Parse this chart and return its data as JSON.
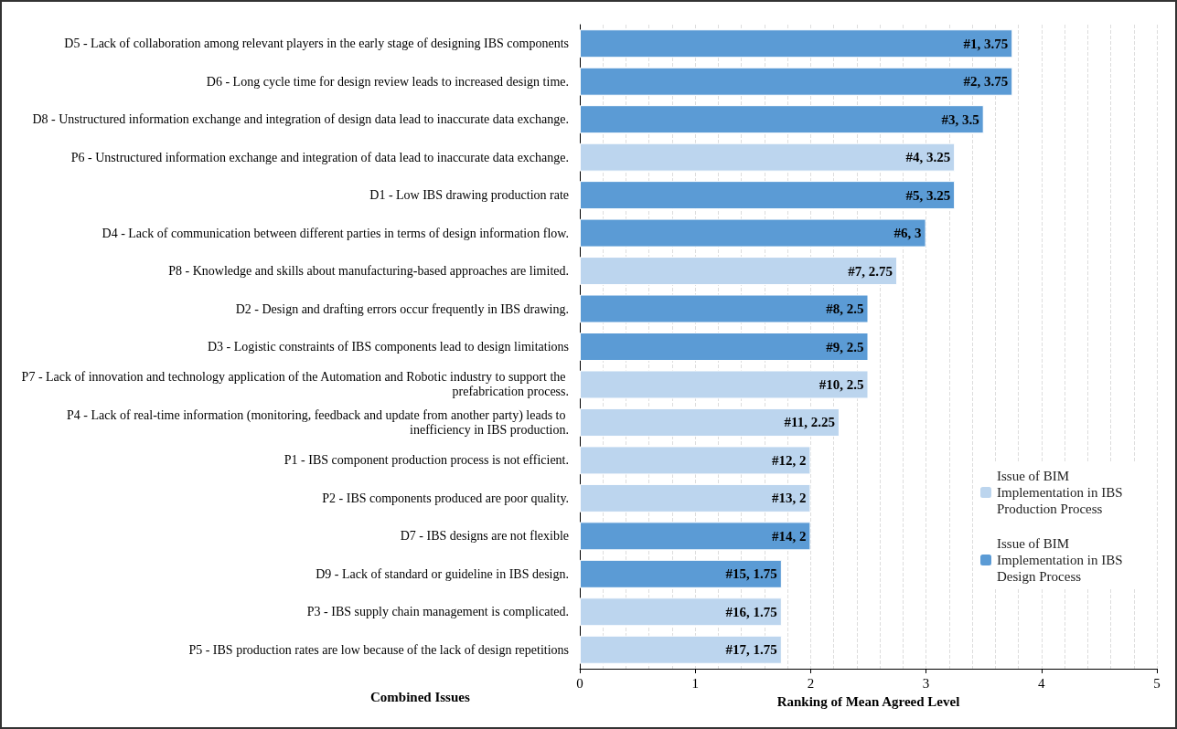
{
  "chart_data": {
    "type": "bar",
    "orientation": "horizontal",
    "xlabel": "Ranking of Mean Agreed Level",
    "ylabel": "Combined Issues",
    "categories": [
      "D5 - Lack of collaboration among relevant players in the early stage of designing IBS components",
      "D6 - Long cycle time for design review leads to increased design time.",
      "D8 - Unstructured information exchange and integration of design data lead to inaccurate data exchange.",
      "P6 - Unstructured information exchange and integration of data lead to inaccurate data exchange.",
      "D1 - Low IBS drawing production rate",
      "D4 - Lack of communication between different parties in terms of design information flow.",
      "P8 - Knowledge and skills about manufacturing-based approaches are limited.",
      "D2 - Design and drafting errors occur frequently in IBS drawing.",
      "D3 - Logistic constraints of IBS components lead to design limitations",
      "P7 - Lack of innovation and technology application of the Automation and Robotic industry to support the prefabrication process.",
      "P4 - Lack of real-time information (monitoring, feedback and update from another party) leads to inefficiency in IBS production.",
      "P1 - IBS component production process is not efficient.",
      "P2 - IBS components produced are poor quality.",
      "D7 - IBS designs are not flexible",
      "D9 - Lack of standard or guideline in IBS design.",
      "P3 - IBS supply chain management is complicated.",
      "P5 - IBS production rates are low because of the lack of design repetitions"
    ],
    "series": [
      {
        "name": "Issue of BIM Implementation in IBS Production Process",
        "color": "#bcd5ee",
        "values": [
          null,
          null,
          null,
          3.25,
          null,
          null,
          2.75,
          null,
          null,
          2.5,
          2.25,
          2,
          2,
          null,
          null,
          1.75,
          1.75
        ],
        "value_labels": [
          null,
          null,
          null,
          "#4, 3.25",
          null,
          null,
          "#7, 2.75",
          null,
          null,
          "#10, 2.5",
          "#11, 2.25",
          "#12, 2",
          "#13, 2",
          null,
          null,
          "#16, 1.75",
          "#17, 1.75"
        ]
      },
      {
        "name": "Issue of BIM Implementation in IBS Design Process",
        "color": "#5b9bd5",
        "values": [
          3.75,
          3.75,
          3.5,
          null,
          3.25,
          3,
          null,
          2.5,
          2.5,
          null,
          null,
          null,
          null,
          2,
          1.75,
          null,
          null
        ],
        "value_labels": [
          "#1, 3.75",
          "#2, 3.75",
          "#3, 3.5",
          null,
          "#5, 3.25",
          "#6, 3",
          null,
          "#8, 2.5",
          "#9, 2.5",
          null,
          null,
          null,
          null,
          "#14, 2",
          "#15, 1.75",
          null,
          null
        ]
      }
    ],
    "xlim": [
      0,
      5
    ],
    "xticks": [
      0,
      1,
      2,
      3,
      4,
      5
    ],
    "grid": "x",
    "legend": "right"
  }
}
